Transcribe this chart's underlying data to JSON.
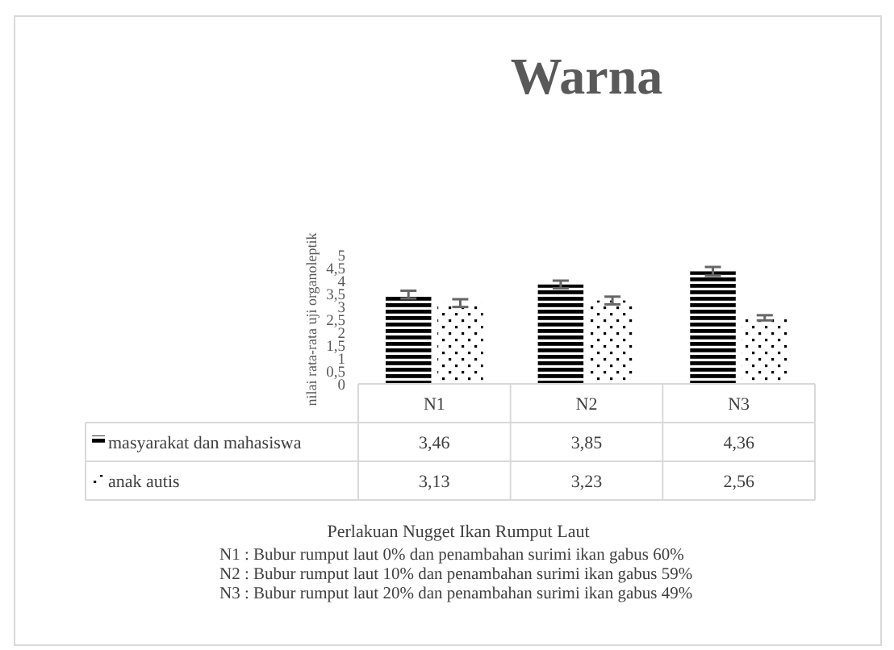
{
  "chart_data": {
    "type": "bar",
    "title": "Warna",
    "ylabel": "nilai rata-rata uji organoleptik",
    "categories": [
      "N1",
      "N2",
      "N3"
    ],
    "series": [
      {
        "name": "masyarakat dan mahasiswa",
        "color": "#000000",
        "values": [
          3.46,
          3.85,
          4.36
        ],
        "errors": [
          0.15,
          0.15,
          0.17
        ],
        "value_labels": [
          "3,46",
          "3,85",
          "4,36"
        ]
      },
      {
        "name": "anak autis",
        "color": "#ffffff",
        "values": [
          3.13,
          3.23,
          2.56
        ],
        "errors": [
          0.15,
          0.15,
          0.1
        ],
        "value_labels": [
          "3,13",
          "3,23",
          "2,56"
        ]
      }
    ],
    "ylim": [
      0,
      5
    ],
    "yticks": [
      0,
      {
        "value": 0.5,
        "label": "0,5"
      },
      1,
      {
        "value": 1.5,
        "label": "1,5"
      },
      2,
      {
        "value": 2.5,
        "label": "2,5"
      },
      3,
      {
        "value": 3.5,
        "label": "3,5"
      },
      4,
      {
        "value": 4.5,
        "label": "4,5"
      },
      5
    ],
    "grid": false,
    "legend": "bottom",
    "annotations": [
      "Perlakuan Nugget Ikan Rumput Laut",
      "N1 : Bubur rumput laut 0% dan penambahan surimi ikan gabus 60%",
      "N2 : Bubur rumput laut 10% dan penambahan surimi ikan gabus 59%",
      "N3 : Bubur rumput laut 20% dan penambahan surimi ikan gabus 49%"
    ]
  }
}
